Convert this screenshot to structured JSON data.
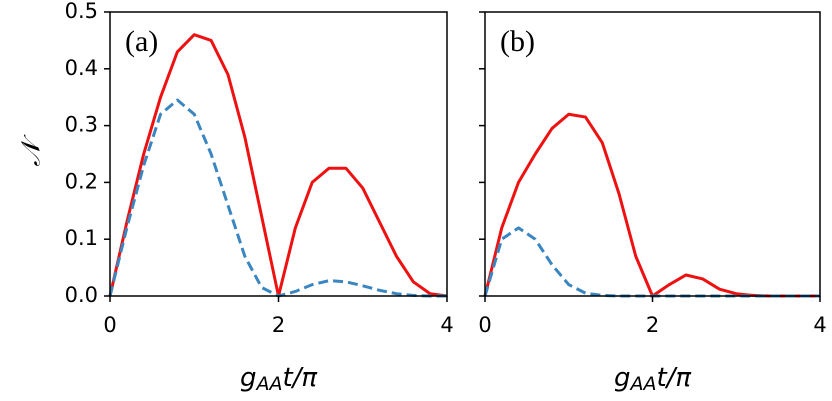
{
  "chart_data": [
    {
      "type": "line",
      "panel_label": "(a)",
      "ylabel": "𝒩",
      "xlabel": {
        "base": "g",
        "sub": "AA",
        "rest": "t/π"
      },
      "x": [
        0,
        0.2,
        0.4,
        0.6,
        0.8,
        1.0,
        1.2,
        1.4,
        1.6,
        1.8,
        2.0,
        2.2,
        2.4,
        2.6,
        2.8,
        3.0,
        3.2,
        3.4,
        3.6,
        3.8,
        4.0
      ],
      "series": [
        {
          "color": "#ee1111",
          "linestyle": "solid",
          "values": [
            0,
            0.13,
            0.25,
            0.35,
            0.43,
            0.46,
            0.45,
            0.39,
            0.28,
            0.14,
            0,
            0.12,
            0.2,
            0.225,
            0.225,
            0.19,
            0.13,
            0.07,
            0.025,
            0.004,
            0
          ]
        },
        {
          "color": "#3a86c0",
          "linestyle": "dashed",
          "values": [
            0,
            0.12,
            0.23,
            0.32,
            0.345,
            0.32,
            0.25,
            0.16,
            0.07,
            0.015,
            0,
            0.008,
            0.02,
            0.027,
            0.025,
            0.018,
            0.01,
            0.004,
            0.001,
            0,
            0
          ]
        }
      ],
      "xlim": [
        0,
        4
      ],
      "xticks": [
        0,
        2,
        4
      ],
      "ylim": [
        0,
        0.5
      ],
      "yticks": [
        {
          "value": 0,
          "label": "0.0"
        },
        {
          "value": 0.1,
          "label": "0.1"
        },
        {
          "value": 0.2,
          "label": "0.2"
        },
        {
          "value": 0.3,
          "label": "0.3"
        },
        {
          "value": 0.4,
          "label": "0.4"
        },
        {
          "value": 0.5,
          "label": "0.5"
        }
      ]
    },
    {
      "type": "line",
      "panel_label": "(b)",
      "xlabel": {
        "base": "g",
        "sub": "AA",
        "rest": "t/π"
      },
      "x": [
        0,
        0.2,
        0.4,
        0.6,
        0.8,
        1.0,
        1.2,
        1.4,
        1.6,
        1.8,
        2.0,
        2.2,
        2.4,
        2.6,
        2.8,
        3.0,
        3.2,
        3.4,
        3.6,
        3.8,
        4.0
      ],
      "series": [
        {
          "color": "#ee1111",
          "linestyle": "solid",
          "values": [
            0,
            0.12,
            0.2,
            0.25,
            0.295,
            0.32,
            0.315,
            0.27,
            0.18,
            0.07,
            0,
            0.02,
            0.037,
            0.03,
            0.012,
            0.004,
            0.001,
            0,
            0,
            0,
            0
          ]
        },
        {
          "color": "#3a86c0",
          "linestyle": "dashed",
          "values": [
            0,
            0.1,
            0.12,
            0.1,
            0.055,
            0.02,
            0.005,
            0.001,
            0,
            0,
            0,
            0,
            0,
            0,
            0,
            0,
            0,
            0,
            0,
            0,
            0
          ]
        }
      ],
      "xlim": [
        0,
        4
      ],
      "xticks": [
        0,
        2,
        4
      ],
      "ylim": [
        0,
        0.5
      ],
      "yticks": [
        0,
        0.1,
        0.2,
        0.3,
        0.4,
        0.5
      ]
    }
  ]
}
